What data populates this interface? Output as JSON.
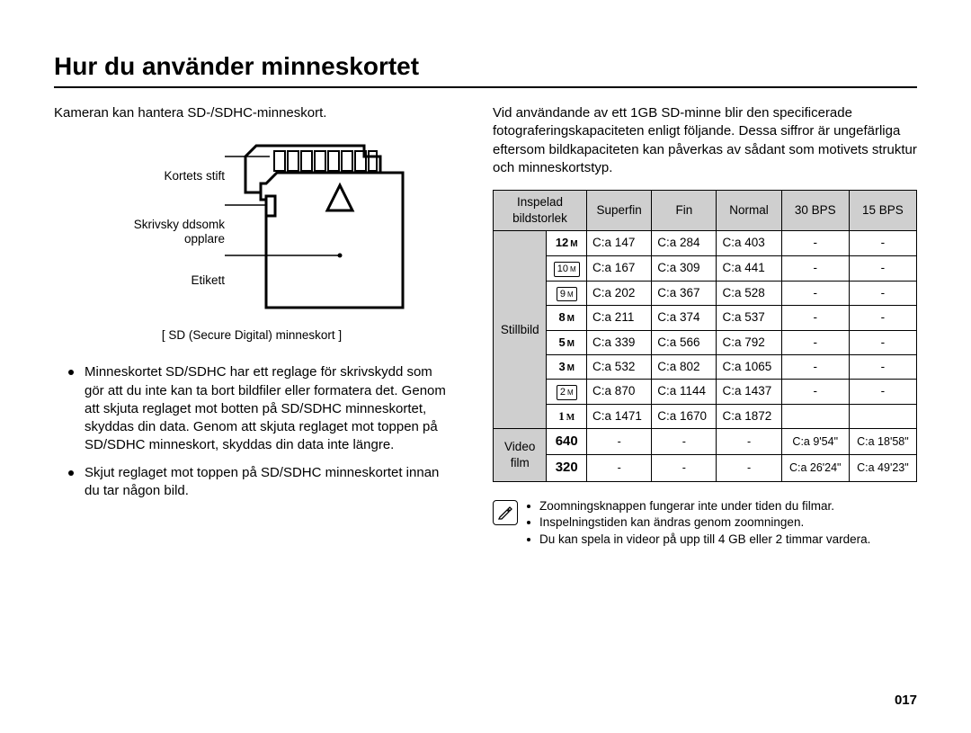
{
  "heading": "Hur du använder minneskortet",
  "page_number": "017",
  "left": {
    "intro": "Kameran kan hantera SD-/SDHC-minneskort.",
    "labels": {
      "pins": "Kortets stift",
      "switch_l1": "Skrivsky ddsomk",
      "switch_l2": "opplare",
      "label_sticker": "Etikett"
    },
    "caption": "[ SD (Secure Digital) minneskort ]",
    "bullets": [
      "Minneskortet SD/SDHC har ett reglage för skrivskydd som gör att du inte kan ta bort bildfiler eller formatera det. Genom att skjuta reglaget mot botten på SD/SDHC minneskortet, skyddas din data. Genom att skjuta reglaget mot toppen på SD/SDHC minneskort, skyddas din data inte längre.",
      "Skjut reglaget mot toppen på SD/SDHC minneskortet innan du tar någon bild."
    ]
  },
  "right": {
    "intro": "Vid användande av ett 1GB SD-minne blir den specificerade fotograferingskapaciteten enligt följande. Dessa siffror är ungefärliga eftersom bildkapaciteten kan påverkas av sådant som motivets struktur och minneskortstyp.",
    "table": {
      "headers": {
        "size_l1": "Inspelad",
        "size_l2": "bildstorlek",
        "superfine": "Superfin",
        "fine": "Fin",
        "normal": "Normal",
        "fps30": "30 BPS",
        "fps15": "15 BPS"
      },
      "still_label": "Stillbild",
      "video_label_l1": "Video",
      "video_label_l2": "film",
      "still_rows": [
        {
          "size_num": "12",
          "size_m": "M",
          "boxed": false,
          "sf": "C:a 147",
          "f": "C:a 284",
          "n": "C:a 403",
          "b30": "-",
          "b15": "-"
        },
        {
          "size_num": "10",
          "size_m": "M",
          "boxed": true,
          "sf": "C:a 167",
          "f": "C:a 309",
          "n": "C:a 441",
          "b30": "-",
          "b15": "-"
        },
        {
          "size_num": "9",
          "size_m": "M",
          "boxed": true,
          "sf": "C:a 202",
          "f": "C:a 367",
          "n": "C:a 528",
          "b30": "-",
          "b15": "-"
        },
        {
          "size_num": "8",
          "size_m": "M",
          "boxed": false,
          "sf": "C:a 211",
          "f": "C:a 374",
          "n": "C:a 537",
          "b30": "-",
          "b15": "-"
        },
        {
          "size_num": "5",
          "size_m": "M",
          "boxed": false,
          "sf": "C:a 339",
          "f": "C:a 566",
          "n": "C:a 792",
          "b30": "-",
          "b15": "-"
        },
        {
          "size_num": "3",
          "size_m": "M",
          "boxed": false,
          "sf": "C:a 532",
          "f": "C:a 802",
          "n": "C:a 1065",
          "b30": "-",
          "b15": "-"
        },
        {
          "size_num": "2",
          "size_m": "M",
          "boxed": true,
          "sf": "C:a 870",
          "f": "C:a 1144",
          "n": "C:a 1437",
          "b30": "-",
          "b15": "-"
        },
        {
          "size_num": "1",
          "size_m": "M",
          "boxed": false,
          "line_i": true,
          "sf": "C:a 1471",
          "f": "C:a 1670",
          "n": "C:a 1872",
          "b30": "",
          "b15": ""
        }
      ],
      "video_rows": [
        {
          "size": "640",
          "sf": "-",
          "f": "-",
          "n": "-",
          "b30": "C:a 9'54\"",
          "b15": "C:a 18'58\""
        },
        {
          "size": "320",
          "sf": "-",
          "f": "-",
          "n": "-",
          "b30": "C:a 26'24\"",
          "b15": "C:a 49'23\""
        }
      ]
    },
    "notes": [
      "Zoomningsknappen fungerar inte under tiden du filmar.",
      "Inspelningstiden kan ändras genom zoomningen.",
      "Du kan spela in videor på upp till 4 GB eller 2 timmar vardera."
    ]
  },
  "colors": {
    "table_header_bg": "#cfcfcf",
    "text": "#000000",
    "bg": "#ffffff",
    "rule": "#000000"
  }
}
